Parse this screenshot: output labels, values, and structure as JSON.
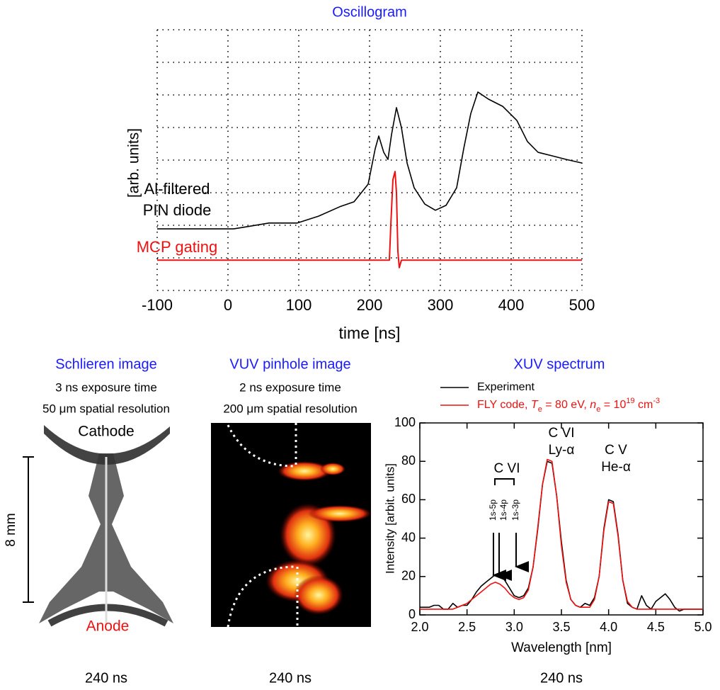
{
  "chart_data": [
    {
      "type": "line",
      "title": "Oscillogram",
      "xlabel": "time [ns]",
      "ylabel": "[arb. units]",
      "xlim": [
        -100,
        500
      ],
      "xticks": [
        -100,
        0,
        100,
        200,
        300,
        400,
        500
      ],
      "ylim": [
        0,
        8
      ],
      "grid": true,
      "annotations": [
        "Al-filtered",
        "PIN diode",
        "MCP gating"
      ],
      "series": [
        {
          "name": "Al-filtered PIN diode",
          "color": "#000000",
          "x": [
            -100,
            8,
            28,
            58,
            98,
            128,
            158,
            178,
            198,
            208,
            213,
            220,
            226,
            231,
            238,
            245,
            253,
            263,
            278,
            293,
            308,
            323,
            333,
            343,
            353,
            368,
            388,
            408,
            423,
            438,
            458,
            478,
            500
          ],
          "values": [
            1.89,
            1.89,
            1.96,
            2.07,
            2.07,
            2.28,
            2.57,
            2.72,
            3.26,
            4.35,
            4.74,
            4.24,
            4.02,
            4.78,
            5.61,
            5.0,
            3.91,
            3.15,
            2.65,
            2.46,
            2.61,
            3.15,
            4.35,
            5.43,
            6.09,
            5.87,
            5.65,
            5.22,
            4.57,
            4.24,
            4.13,
            4.02,
            3.91
          ]
        },
        {
          "name": "MCP gating",
          "color": "#ee1111",
          "x": [
            -100,
            228,
            230,
            233,
            236,
            238,
            240,
            242,
            245,
            500
          ],
          "values": [
            0.93,
            0.93,
            2.0,
            3.4,
            3.65,
            3.0,
            1.2,
            0.7,
            0.93,
            0.93
          ]
        }
      ]
    },
    {
      "type": "line",
      "title": "XUV spectrum",
      "xlabel": "Wavelength [nm]",
      "ylabel": "Intensity [arbit. units]",
      "footnote": "240 ns",
      "xlim": [
        2.0,
        5.0
      ],
      "xticks": [
        {
          "value": 2.0,
          "label": "2.0"
        },
        {
          "value": 2.5,
          "label": "2.5"
        },
        {
          "value": 3.0,
          "label": "3.0"
        },
        {
          "value": 3.5,
          "label": "3.5"
        },
        {
          "value": 4.0,
          "label": "4.0"
        },
        {
          "value": 4.5,
          "label": "4.5"
        },
        {
          "value": 5.0,
          "label": "5.0"
        }
      ],
      "ylim": [
        0,
        100
      ],
      "yticks": [
        0,
        20,
        40,
        60,
        80,
        100
      ],
      "annotations": [
        "C VI",
        "Ly-α",
        "C V",
        "He-α",
        "C VI",
        "1s-5p",
        "1s-4p",
        "1s-3p"
      ],
      "x": [
        2.0,
        2.05,
        2.1,
        2.15,
        2.2,
        2.25,
        2.3,
        2.35,
        2.4,
        2.45,
        2.5,
        2.55,
        2.6,
        2.65,
        2.7,
        2.75,
        2.8,
        2.85,
        2.9,
        2.95,
        3.0,
        3.05,
        3.1,
        3.15,
        3.2,
        3.25,
        3.3,
        3.35,
        3.4,
        3.45,
        3.5,
        3.55,
        3.6,
        3.65,
        3.7,
        3.75,
        3.8,
        3.85,
        3.9,
        3.95,
        4.0,
        4.05,
        4.1,
        4.15,
        4.2,
        4.25,
        4.3,
        4.35,
        4.4,
        4.45,
        4.5,
        4.55,
        4.6,
        4.65,
        4.7,
        4.75,
        4.8,
        4.85,
        4.9,
        4.95,
        5.0
      ],
      "series": [
        {
          "name": [
            "Experiment"
          ],
          "color": "#000000",
          "values": [
            4,
            4,
            4,
            5,
            5,
            3,
            3,
            6,
            4,
            5,
            5,
            8,
            12,
            15,
            17,
            19,
            21,
            21,
            18,
            14,
            10,
            9,
            10,
            14,
            25,
            45,
            68,
            80,
            79,
            62,
            38,
            18,
            8,
            5,
            4,
            6,
            5,
            9,
            20,
            45,
            60,
            59,
            42,
            18,
            6,
            4,
            3,
            10,
            5,
            3,
            7,
            9,
            11,
            8,
            4,
            2,
            3,
            3,
            3,
            3,
            3
          ]
        },
        {
          "name": [
            "FLY code, ",
            "T",
            "e",
            " = 80 eV, ",
            "n",
            "e",
            " = 10",
            "19",
            " cm",
            "-3"
          ],
          "color": "#ee1111",
          "values": [
            3,
            3,
            3,
            3,
            3,
            3,
            3,
            3,
            4,
            5,
            6,
            8,
            10,
            12,
            14,
            16,
            17,
            16,
            14,
            11,
            9,
            8,
            9,
            13,
            25,
            46,
            68,
            81,
            80,
            62,
            36,
            17,
            8,
            5,
            4,
            4,
            4,
            8,
            20,
            44,
            59,
            58,
            41,
            18,
            7,
            4,
            3,
            3,
            3,
            3,
            3,
            3,
            3,
            3,
            3,
            3,
            3,
            3,
            3,
            3,
            3
          ]
        }
      ]
    }
  ],
  "images": [
    {
      "title": "Schlieren image",
      "caption": [
        "3 ns exposure time",
        "50 μm spatial resolution"
      ],
      "labels": [
        "Cathode",
        "Anode",
        "8 mm"
      ],
      "footnote": "240 ns"
    },
    {
      "title": "VUV pinhole image",
      "caption": [
        "2 ns exposure time",
        "200 μm spatial resolution"
      ],
      "footnote": "240 ns"
    }
  ]
}
